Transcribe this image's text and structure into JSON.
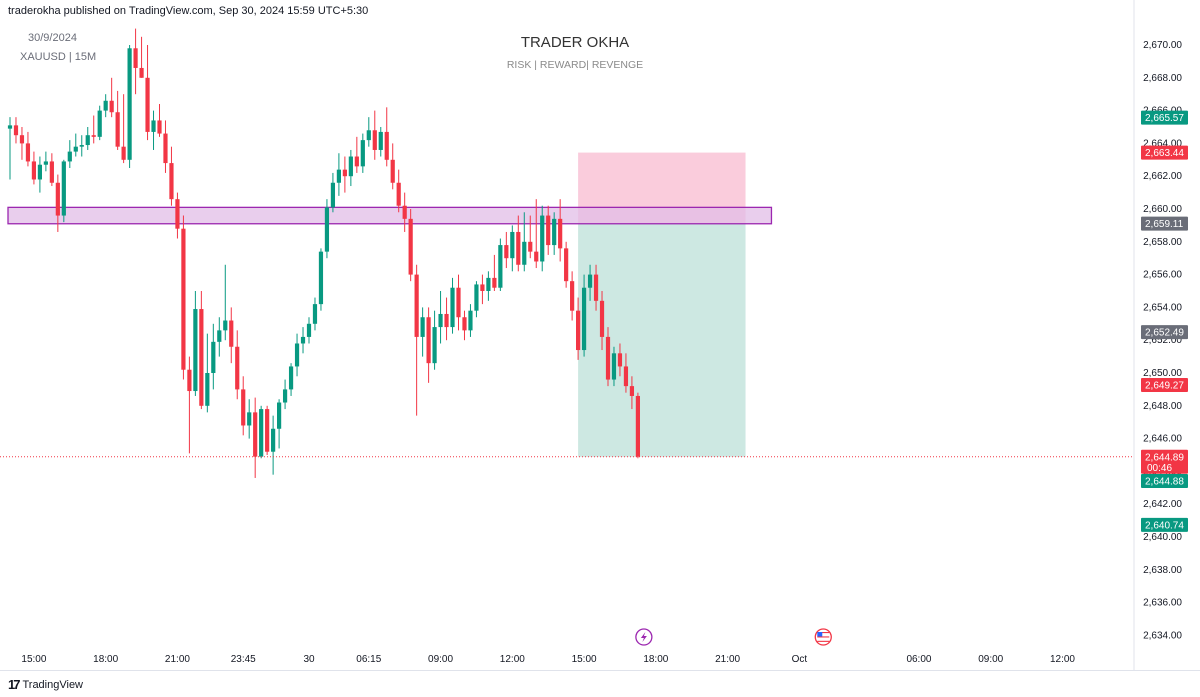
{
  "header": {
    "publisher": "traderokha published on TradingView.com, Sep 30, 2024 15:59 UTC+5:30"
  },
  "chart_info": {
    "date": "30/9/2024",
    "symbol": "XAUUSD | 15M"
  },
  "watermark": {
    "title": "TRADER OKHA",
    "subtitle": "RISK | REWARD| REVENGE"
  },
  "brand": {
    "name": "TradingView"
  },
  "colors": {
    "up": "#089981",
    "down": "#f23645",
    "zone_border": "#9c27b0",
    "zone_fill": "#e1bee7",
    "risk": "#f8bbd0",
    "reward": "#c8e6df",
    "tag_gray": "#6a6d78",
    "tag_green": "#089981",
    "tag_red": "#f23645"
  },
  "chart_data": {
    "type": "candlestick",
    "symbol": "XAUUSD",
    "timeframe": "15M",
    "price_axis": {
      "range": [
        2633,
        2671
      ],
      "ticks": [
        "2,670.00",
        "2,668.00",
        "2,666.00",
        "2,664.00",
        "2,662.00",
        "2,660.00",
        "2,658.00",
        "2,656.00",
        "2,654.00",
        "2,652.00",
        "2,650.00",
        "2,648.00",
        "2,646.00",
        "2,644.00",
        "2,642.00",
        "2,640.00",
        "2,638.00",
        "2,636.00",
        "2,634.00"
      ],
      "tick_values": [
        2670,
        2668,
        2666,
        2664,
        2662,
        2660,
        2658,
        2656,
        2654,
        2652,
        2650,
        2648,
        2646,
        2644,
        2642,
        2640,
        2638,
        2636,
        2634
      ]
    },
    "time_axis": {
      "labels": [
        "15:00",
        "18:00",
        "21:00",
        "23:45",
        "30",
        "06:15",
        "09:00",
        "12:00",
        "15:00",
        "18:00",
        "21:00",
        "Oct",
        "06:00",
        "09:00",
        "12:00"
      ],
      "bar_index": [
        4,
        16,
        28,
        39,
        50,
        60,
        72,
        84,
        96,
        108,
        120,
        132,
        152,
        164,
        176
      ]
    },
    "price_labels": [
      {
        "text": "2,665.57",
        "value": 2665.57,
        "color": "green"
      },
      {
        "text": "2,663.44",
        "value": 2663.44,
        "color": "red"
      },
      {
        "text": "2,659.11",
        "value": 2659.11,
        "color": "gray"
      },
      {
        "text": "2,652.49",
        "value": 2652.49,
        "color": "gray"
      },
      {
        "text": "2,649.27",
        "value": 2649.27,
        "color": "red"
      },
      {
        "text": "2,644.89",
        "value": 2644.89,
        "color": "red",
        "sub": "00:46"
      },
      {
        "text": "2,644.88",
        "value": 2644.88,
        "color": "green"
      },
      {
        "text": "2,640.74",
        "value": 2640.74,
        "color": "green"
      }
    ],
    "zone": {
      "top": 2660.1,
      "bottom": 2659.1,
      "from_bar": 0,
      "to_bar": 127
    },
    "position": {
      "type": "short",
      "entry": 2659.11,
      "stop": 2663.44,
      "target": 2644.89,
      "from_bar": 95,
      "to_bar": 123
    },
    "last_price": 2644.89,
    "events": [
      {
        "bar": 106,
        "icon": "lightning-icon"
      },
      {
        "bar": 136,
        "icon": "us-flag-icon"
      }
    ],
    "candles": [
      [
        2664.9,
        2665.6,
        2661.8,
        2665.1
      ],
      [
        2665.1,
        2665.6,
        2664.0,
        2664.5
      ],
      [
        2664.5,
        2665.0,
        2663.0,
        2664.0
      ],
      [
        2664.0,
        2664.7,
        2662.6,
        2662.9
      ],
      [
        2662.9,
        2663.5,
        2661.5,
        2661.8
      ],
      [
        2661.8,
        2663.2,
        2661.0,
        2662.7
      ],
      [
        2662.7,
        2663.5,
        2662.3,
        2662.9
      ],
      [
        2662.9,
        2663.4,
        2661.4,
        2661.6
      ],
      [
        2661.6,
        2662.1,
        2658.6,
        2659.6
      ],
      [
        2659.6,
        2663.0,
        2659.2,
        2662.9
      ],
      [
        2662.9,
        2664.2,
        2662.5,
        2663.5
      ],
      [
        2663.5,
        2664.6,
        2663.2,
        2663.8
      ],
      [
        2663.8,
        2664.5,
        2663.2,
        2663.9
      ],
      [
        2663.9,
        2665.0,
        2663.6,
        2664.5
      ],
      [
        2664.5,
        2665.7,
        2664.0,
        2664.4
      ],
      [
        2664.4,
        2666.3,
        2664.2,
        2666.0
      ],
      [
        2666.0,
        2667.0,
        2665.6,
        2666.6
      ],
      [
        2666.6,
        2668.0,
        2665.6,
        2665.9
      ],
      [
        2665.9,
        2667.2,
        2663.6,
        2663.8
      ],
      [
        2663.8,
        2667.0,
        2662.8,
        2663.0
      ],
      [
        2663.0,
        2670.0,
        2662.5,
        2669.8
      ],
      [
        2669.8,
        2671.0,
        2667.0,
        2668.6
      ],
      [
        2668.6,
        2670.5,
        2668.0,
        2668.0
      ],
      [
        2668.0,
        2670.0,
        2664.2,
        2664.7
      ],
      [
        2664.7,
        2666.0,
        2663.6,
        2665.4
      ],
      [
        2665.4,
        2666.4,
        2664.4,
        2664.6
      ],
      [
        2664.6,
        2665.4,
        2662.2,
        2662.8
      ],
      [
        2662.8,
        2663.8,
        2660.2,
        2660.6
      ],
      [
        2660.6,
        2661.0,
        2658.2,
        2658.8
      ],
      [
        2658.8,
        2659.6,
        2649.6,
        2650.2
      ],
      [
        2650.2,
        2651.0,
        2645.1,
        2648.9
      ],
      [
        2648.9,
        2655.0,
        2648.6,
        2653.9
      ],
      [
        2653.9,
        2655.0,
        2647.8,
        2648.0
      ],
      [
        2648.0,
        2652.4,
        2647.6,
        2650.0
      ],
      [
        2650.0,
        2653.0,
        2649.0,
        2651.9
      ],
      [
        2651.9,
        2653.4,
        2651.0,
        2652.6
      ],
      [
        2652.6,
        2656.6,
        2652.0,
        2653.2
      ],
      [
        2653.2,
        2654.0,
        2650.6,
        2651.6
      ],
      [
        2651.6,
        2652.6,
        2648.4,
        2649.0
      ],
      [
        2649.0,
        2649.8,
        2646.2,
        2646.8
      ],
      [
        2646.8,
        2648.4,
        2646.0,
        2647.6
      ],
      [
        2647.6,
        2648.5,
        2643.6,
        2644.9
      ],
      [
        2644.9,
        2648.0,
        2644.8,
        2647.8
      ],
      [
        2647.8,
        2648.0,
        2645.0,
        2645.2
      ],
      [
        2645.2,
        2647.4,
        2643.8,
        2646.6
      ],
      [
        2646.6,
        2648.4,
        2645.4,
        2648.2
      ],
      [
        2648.2,
        2649.6,
        2647.8,
        2649.0
      ],
      [
        2649.0,
        2650.6,
        2648.6,
        2650.4
      ],
      [
        2650.4,
        2652.4,
        2649.8,
        2651.8
      ],
      [
        2651.8,
        2652.8,
        2651.2,
        2652.2
      ],
      [
        2652.2,
        2653.4,
        2651.8,
        2653.0
      ],
      [
        2653.0,
        2654.6,
        2652.6,
        2654.2
      ],
      [
        2654.2,
        2657.6,
        2653.8,
        2657.4
      ],
      [
        2657.4,
        2660.6,
        2657.0,
        2660.1
      ],
      [
        2660.1,
        2662.2,
        2659.8,
        2661.6
      ],
      [
        2661.6,
        2663.4,
        2660.8,
        2662.4
      ],
      [
        2662.4,
        2663.2,
        2661.0,
        2662.0
      ],
      [
        2662.0,
        2663.6,
        2661.4,
        2663.2
      ],
      [
        2663.2,
        2664.4,
        2662.2,
        2662.6
      ],
      [
        2662.6,
        2664.6,
        2662.2,
        2664.2
      ],
      [
        2664.2,
        2665.6,
        2663.8,
        2664.8
      ],
      [
        2664.8,
        2666.0,
        2663.0,
        2663.6
      ],
      [
        2663.6,
        2665.0,
        2663.2,
        2664.7
      ],
      [
        2664.7,
        2666.2,
        2662.6,
        2663.0
      ],
      [
        2663.0,
        2664.0,
        2661.2,
        2661.6
      ],
      [
        2661.6,
        2662.4,
        2659.8,
        2660.2
      ],
      [
        2660.2,
        2661.0,
        2658.6,
        2659.4
      ],
      [
        2659.4,
        2660.0,
        2655.6,
        2656.0
      ],
      [
        2656.0,
        2656.6,
        2647.4,
        2652.2
      ],
      [
        2652.2,
        2654.0,
        2651.0,
        2653.4
      ],
      [
        2653.4,
        2654.0,
        2649.4,
        2650.6
      ],
      [
        2650.6,
        2653.8,
        2650.2,
        2652.8
      ],
      [
        2652.8,
        2655.0,
        2651.8,
        2653.6
      ],
      [
        2653.6,
        2654.6,
        2652.0,
        2652.8
      ],
      [
        2652.8,
        2655.8,
        2652.4,
        2655.2
      ],
      [
        2655.2,
        2656.0,
        2652.6,
        2653.4
      ],
      [
        2653.4,
        2653.8,
        2652.0,
        2652.6
      ],
      [
        2652.6,
        2654.2,
        2652.2,
        2653.8
      ],
      [
        2653.8,
        2655.6,
        2653.4,
        2655.4
      ],
      [
        2655.4,
        2656.0,
        2654.2,
        2655.0
      ],
      [
        2655.0,
        2656.2,
        2654.4,
        2655.8
      ],
      [
        2655.8,
        2657.2,
        2655.0,
        2655.2
      ],
      [
        2655.2,
        2658.2,
        2655.0,
        2657.8
      ],
      [
        2657.8,
        2658.6,
        2656.4,
        2657.0
      ],
      [
        2657.0,
        2659.0,
        2656.2,
        2658.6
      ],
      [
        2658.6,
        2659.6,
        2656.2,
        2656.6
      ],
      [
        2656.6,
        2659.8,
        2656.2,
        2658.0
      ],
      [
        2658.0,
        2659.6,
        2657.0,
        2657.4
      ],
      [
        2657.4,
        2660.6,
        2656.4,
        2656.8
      ],
      [
        2656.8,
        2660.2,
        2656.2,
        2659.6
      ],
      [
        2659.6,
        2660.2,
        2657.2,
        2657.8
      ],
      [
        2657.8,
        2659.8,
        2657.2,
        2659.4
      ],
      [
        2659.4,
        2660.6,
        2656.8,
        2657.6
      ],
      [
        2657.6,
        2658.0,
        2655.2,
        2655.6
      ],
      [
        2655.6,
        2656.2,
        2653.2,
        2653.8
      ],
      [
        2653.8,
        2654.6,
        2650.8,
        2651.4
      ],
      [
        2651.4,
        2656.0,
        2651.0,
        2655.2
      ],
      [
        2655.2,
        2656.6,
        2654.4,
        2656.0
      ],
      [
        2656.0,
        2656.6,
        2653.8,
        2654.4
      ],
      [
        2654.4,
        2655.0,
        2651.4,
        2652.2
      ],
      [
        2652.2,
        2652.8,
        2649.2,
        2649.6
      ],
      [
        2649.6,
        2651.6,
        2649.2,
        2651.2
      ],
      [
        2651.2,
        2651.8,
        2649.8,
        2650.4
      ],
      [
        2650.4,
        2651.2,
        2648.8,
        2649.2
      ],
      [
        2649.2,
        2649.8,
        2647.8,
        2648.6
      ],
      [
        2648.6,
        2648.8,
        2644.8,
        2644.9
      ]
    ]
  }
}
